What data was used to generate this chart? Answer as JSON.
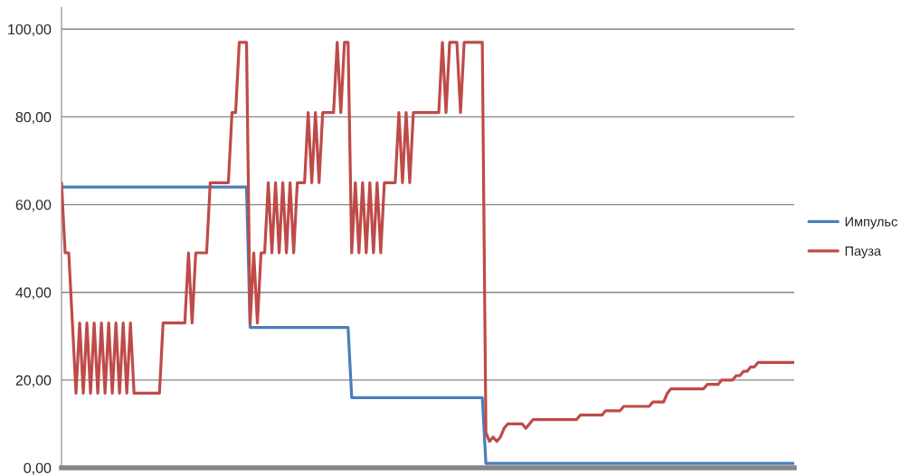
{
  "chart_data": {
    "type": "line",
    "categories": [
      null,
      null,
      null,
      null,
      null,
      null,
      null,
      null,
      null,
      null,
      null,
      null,
      null,
      null,
      null,
      null,
      null,
      null,
      null,
      null,
      null,
      null,
      null,
      null,
      null,
      null,
      null,
      null,
      null,
      null,
      null,
      null,
      null,
      null,
      null,
      null,
      null,
      null,
      null,
      null,
      null,
      null,
      null,
      null,
      null,
      null,
      null,
      null,
      null,
      null,
      null,
      null,
      null,
      null,
      null,
      null,
      null,
      null,
      null,
      null,
      null,
      null,
      null,
      null,
      null,
      null,
      null,
      null,
      null,
      null,
      null,
      null,
      null,
      null,
      null,
      null,
      null,
      null,
      null,
      null,
      null,
      null,
      null,
      null,
      null,
      null,
      null,
      null,
      null,
      null,
      null,
      null,
      null,
      null,
      null,
      null,
      null,
      null,
      null,
      null,
      null,
      null,
      null,
      null,
      null,
      null,
      null,
      null,
      null,
      null,
      null,
      null,
      null,
      null,
      null,
      null,
      null,
      null,
      null,
      null,
      null,
      null,
      null,
      null,
      null,
      null,
      null,
      null,
      null,
      null,
      null,
      null,
      null,
      null,
      null,
      null,
      null,
      null,
      null,
      null,
      null,
      null,
      null,
      null,
      null,
      null,
      null,
      null,
      null,
      null,
      null,
      null,
      null,
      null,
      null,
      null,
      null,
      null,
      null,
      null,
      null,
      null,
      null,
      null,
      null,
      null,
      null,
      null,
      null,
      null,
      null,
      null,
      null,
      null,
      null,
      null,
      null,
      null,
      null,
      null,
      null,
      null,
      null,
      null,
      null,
      null,
      null,
      null,
      null,
      null,
      null,
      null,
      null,
      null,
      null,
      null,
      null,
      null,
      null,
      null,
      null,
      null,
      null
    ],
    "series": [
      {
        "name": "Импульс",
        "color": "#4a7ebb",
        "values": [
          64,
          64,
          64,
          64,
          64,
          64,
          64,
          64,
          64,
          64,
          64,
          64,
          64,
          64,
          64,
          64,
          64,
          64,
          64,
          64,
          64,
          64,
          64,
          64,
          64,
          64,
          64,
          64,
          64,
          64,
          64,
          64,
          64,
          64,
          64,
          64,
          64,
          64,
          64,
          64,
          64,
          64,
          64,
          64,
          64,
          64,
          64,
          64,
          64,
          64,
          64,
          64,
          32,
          32,
          32,
          32,
          32,
          32,
          32,
          32,
          32,
          32,
          32,
          32,
          32,
          32,
          32,
          32,
          32,
          32,
          32,
          32,
          32,
          32,
          32,
          32,
          32,
          32,
          32,
          32,
          16,
          16,
          16,
          16,
          16,
          16,
          16,
          16,
          16,
          16,
          16,
          16,
          16,
          16,
          16,
          16,
          16,
          16,
          16,
          16,
          16,
          16,
          16,
          16,
          16,
          16,
          16,
          16,
          16,
          16,
          16,
          16,
          16,
          16,
          16,
          16,
          16,
          1,
          1,
          1,
          1,
          1,
          1,
          1,
          1,
          1,
          1,
          1,
          1,
          1,
          1,
          1,
          1,
          1,
          1,
          1,
          1,
          1,
          1,
          1,
          1,
          1,
          1,
          1,
          1,
          1,
          1,
          1,
          1,
          1,
          1,
          1,
          1,
          1,
          1,
          1,
          1,
          1,
          1,
          1,
          1,
          1,
          1,
          1,
          1,
          1,
          1,
          1,
          1,
          1,
          1,
          1,
          1,
          1,
          1,
          1,
          1,
          1,
          1,
          1,
          1,
          1,
          1,
          1,
          1,
          1,
          1,
          1,
          1,
          1,
          1,
          1,
          1,
          1,
          1,
          1,
          1,
          1,
          1,
          1,
          1,
          1,
          1
        ]
      },
      {
        "name": "Пауза",
        "color": "#be4b48",
        "values": [
          65,
          49,
          49,
          33,
          17,
          33,
          17,
          33,
          17,
          33,
          17,
          33,
          17,
          33,
          17,
          33,
          17,
          33,
          17,
          33,
          17,
          17,
          17,
          17,
          17,
          17,
          17,
          17,
          33,
          33,
          33,
          33,
          33,
          33,
          33,
          49,
          33,
          49,
          49,
          49,
          49,
          65,
          65,
          65,
          65,
          65,
          65,
          81,
          81,
          97,
          97,
          97,
          33,
          49,
          33,
          49,
          49,
          65,
          49,
          65,
          49,
          65,
          49,
          65,
          49,
          65,
          65,
          65,
          81,
          65,
          81,
          65,
          81,
          81,
          81,
          81,
          97,
          81,
          97,
          97,
          49,
          65,
          49,
          65,
          49,
          65,
          49,
          65,
          49,
          65,
          65,
          65,
          65,
          81,
          65,
          81,
          65,
          81,
          81,
          81,
          81,
          81,
          81,
          81,
          81,
          97,
          81,
          97,
          97,
          97,
          81,
          97,
          97,
          97,
          97,
          97,
          97,
          8,
          6,
          7,
          6,
          7,
          9,
          10,
          10,
          10,
          10,
          10,
          9,
          10,
          11,
          11,
          11,
          11,
          11,
          11,
          11,
          11,
          11,
          11,
          11,
          11,
          11,
          12,
          12,
          12,
          12,
          12,
          12,
          12,
          13,
          13,
          13,
          13,
          13,
          14,
          14,
          14,
          14,
          14,
          14,
          14,
          14,
          15,
          15,
          15,
          15,
          17,
          18,
          18,
          18,
          18,
          18,
          18,
          18,
          18,
          18,
          18,
          19,
          19,
          19,
          19,
          20,
          20,
          20,
          20,
          21,
          21,
          22,
          22,
          23,
          23,
          24,
          24,
          24,
          24,
          24,
          24,
          24,
          24,
          24,
          24,
          24
        ]
      }
    ],
    "ylim": [
      0,
      105
    ],
    "yticks": [
      {
        "value": 0,
        "label": "0,00"
      },
      {
        "value": 20,
        "label": "20,00"
      },
      {
        "value": 40,
        "label": "40,00"
      },
      {
        "value": 60,
        "label": "60,00"
      },
      {
        "value": 80,
        "label": "80,00"
      },
      {
        "value": 100,
        "label": "100,00"
      }
    ],
    "grid": "y",
    "legend": "right",
    "marker": "none",
    "line_style": "solid"
  }
}
